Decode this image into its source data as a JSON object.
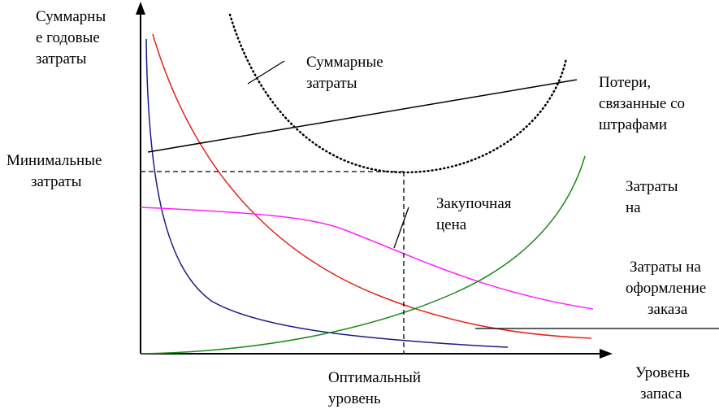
{
  "labels": {
    "y_axis": [
      "Суммарны",
      "е годовые",
      "затраты"
    ],
    "min_cost": [
      "Минимальные",
      "затраты"
    ],
    "total_cost": [
      "Суммарные",
      "затраты"
    ],
    "penalty": [
      "Потери,",
      "связанные со",
      "штрафами"
    ],
    "holding": [
      "Затраты",
      "на"
    ],
    "purchase": [
      "Закупочная",
      "цена"
    ],
    "ordering": [
      "Затраты на",
      "оформление",
      "заказа"
    ],
    "optimal": [
      "Оптимальный",
      "уровень"
    ],
    "x_axis": [
      "Уровень",
      "запаса"
    ]
  },
  "colors": {
    "axis": "#000000",
    "total": "#000000",
    "penalty": "#000000",
    "holding": "#1a8a1a",
    "purchase": "#ff22ff",
    "red_curve": "#e8201a",
    "ordering": "#1a1a8c"
  }
}
